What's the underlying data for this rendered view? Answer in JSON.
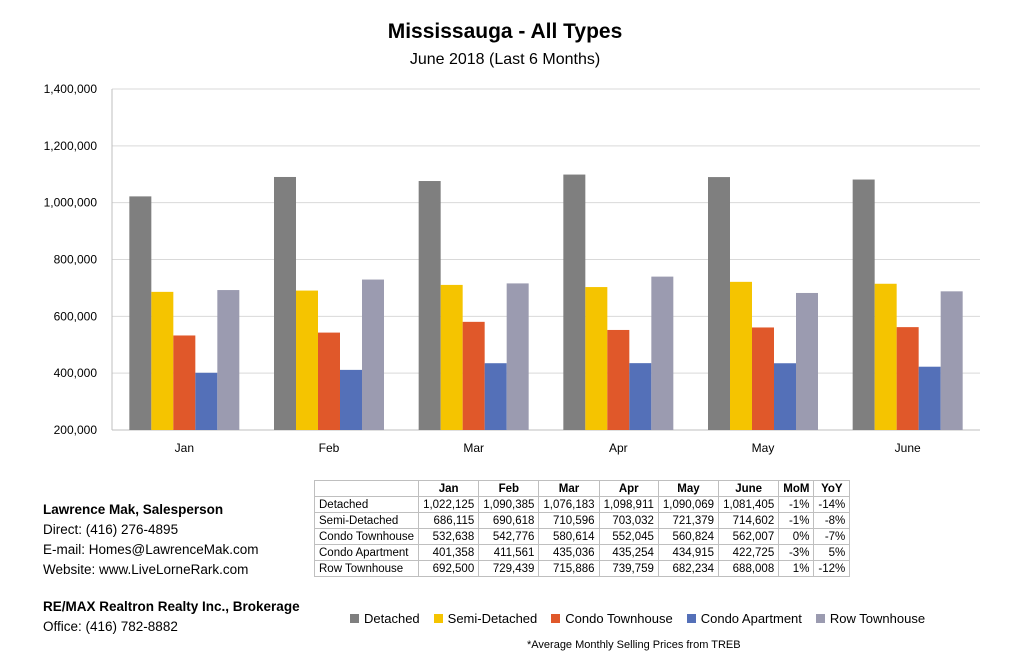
{
  "chart_data": {
    "type": "bar",
    "title": "Mississauga - All Types",
    "subtitle": "June 2018 (Last 6 Months)",
    "categories": [
      "Jan",
      "Feb",
      "Mar",
      "Apr",
      "May",
      "June"
    ],
    "ylim": [
      200000,
      1400000
    ],
    "yticks": [
      200000,
      400000,
      600000,
      800000,
      1000000,
      1200000,
      1400000
    ],
    "ytick_labels": [
      "200,000",
      "400,000",
      "600,000",
      "800,000",
      "1,000,000",
      "1,200,000",
      "1,400,000"
    ],
    "grid": true,
    "legend_position": "bottom",
    "series": [
      {
        "name": "Detached",
        "color": "#7f7f7f",
        "values": [
          1022125,
          1090385,
          1076183,
          1098911,
          1090069,
          1081405
        ]
      },
      {
        "name": "Semi-Detached",
        "color": "#f5c400",
        "values": [
          686115,
          690618,
          710596,
          703032,
          721379,
          714602
        ]
      },
      {
        "name": "Condo Townhouse",
        "color": "#e0582a",
        "values": [
          532638,
          542776,
          580614,
          552045,
          560824,
          562007
        ]
      },
      {
        "name": "Condo Apartment",
        "color": "#5470b8",
        "values": [
          401358,
          411561,
          435036,
          435254,
          434915,
          422725
        ]
      },
      {
        "name": "Row Townhouse",
        "color": "#9b9bb0",
        "values": [
          692500,
          729439,
          715886,
          739759,
          682234,
          688008
        ]
      }
    ]
  },
  "table": {
    "headers": [
      "",
      "Jan",
      "Feb",
      "Mar",
      "Apr",
      "May",
      "June",
      "MoM",
      "YoY"
    ],
    "rows": [
      [
        "Detached",
        "1,022,125",
        "1,090,385",
        "1,076,183",
        "1,098,911",
        "1,090,069",
        "1,081,405",
        "-1%",
        "-14%"
      ],
      [
        "Semi-Detached",
        "686,115",
        "690,618",
        "710,596",
        "703,032",
        "721,379",
        "714,602",
        "-1%",
        "-8%"
      ],
      [
        "Condo Townhouse",
        "532,638",
        "542,776",
        "580,614",
        "552,045",
        "560,824",
        "562,007",
        "0%",
        "-7%"
      ],
      [
        "Condo Apartment",
        "401,358",
        "411,561",
        "435,036",
        "435,254",
        "434,915",
        "422,725",
        "-3%",
        "5%"
      ],
      [
        "Row Townhouse",
        "692,500",
        "729,439",
        "715,886",
        "739,759",
        "682,234",
        "688,008",
        "1%",
        "-12%"
      ]
    ]
  },
  "contact": {
    "name": "Lawrence Mak, Salesperson",
    "direct": "Direct:  (416) 276-4895",
    "email": "E-mail:  Homes@LawrenceMak.com",
    "website": "Website: www.LiveLorneRark.com"
  },
  "brokerage": {
    "name": "RE/MAX Realtron Realty Inc., Brokerage",
    "office": "Office: (416) 782-8882"
  },
  "footnote": "*Average Monthly Selling Prices  from TREB"
}
